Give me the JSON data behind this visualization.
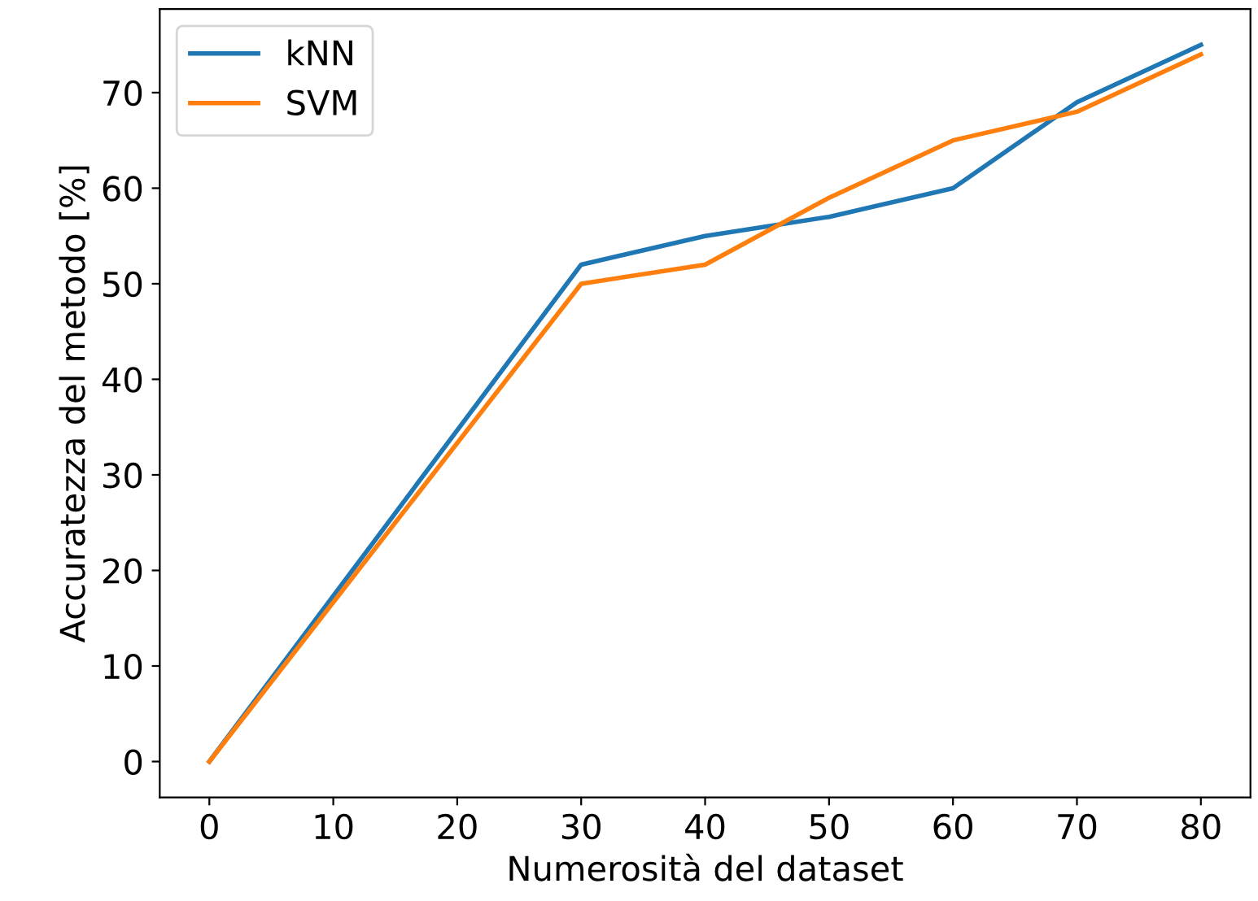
{
  "chart_data": {
    "type": "line",
    "xlabel": "Numerosità del dataset",
    "ylabel": "Accuratezza del metodo [%]",
    "x": [
      0,
      30,
      40,
      50,
      60,
      70,
      80
    ],
    "series": [
      {
        "name": "kNN",
        "color": "#1f77b4",
        "values": [
          0,
          52,
          55,
          57,
          60,
          69,
          75
        ]
      },
      {
        "name": "SVM",
        "color": "#ff7f0e",
        "values": [
          0,
          50,
          52,
          59,
          65,
          68,
          74
        ]
      }
    ],
    "xlim": [
      -4,
      84
    ],
    "ylim": [
      -3.75,
      78.75
    ],
    "xticks": [
      0,
      10,
      20,
      30,
      40,
      50,
      60,
      70,
      80
    ],
    "yticks": [
      0,
      10,
      20,
      30,
      40,
      50,
      60,
      70
    ],
    "legend": "top left",
    "grid": false
  }
}
